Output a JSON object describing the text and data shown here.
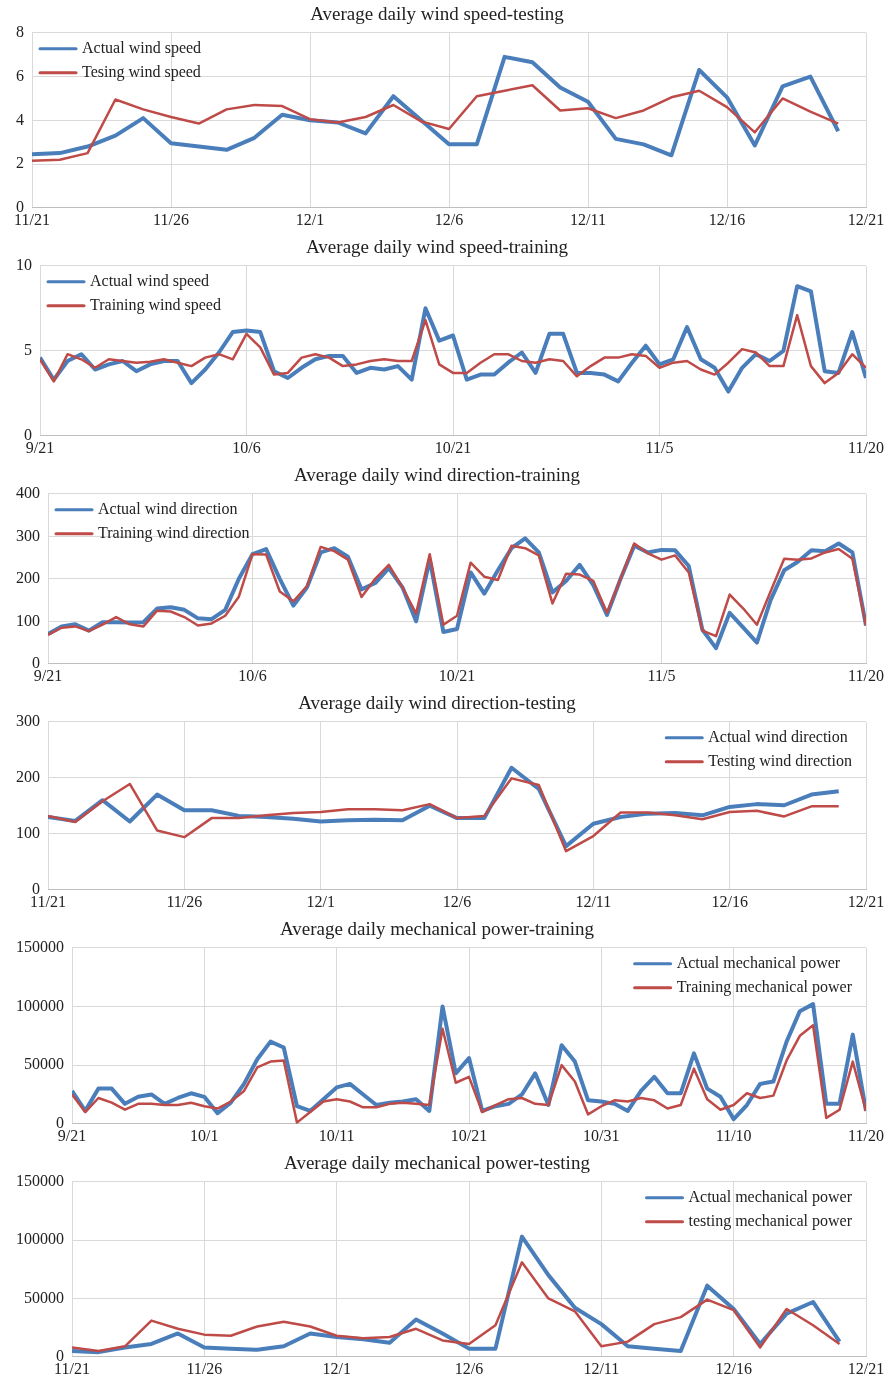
{
  "chart_data": [
    {
      "type": "line",
      "title": "Average daily wind speed-testing",
      "legend": "top left",
      "grid": true,
      "x": [
        "--11-21",
        "--11-22",
        "--11-23",
        "--11-24",
        "--11-25",
        "--11-26",
        "--11-27",
        "--11-28",
        "--11-29",
        "--11-30",
        "--12-01",
        "--12-02",
        "--12-03",
        "--12-04",
        "--12-05",
        "--12-06",
        "--12-07",
        "--12-08",
        "--12-09",
        "--12-10",
        "--12-11",
        "--12-12",
        "--12-13",
        "--12-14",
        "--12-15",
        "--12-16",
        "--12-17",
        "--12-18",
        "--12-19",
        "--12-20"
      ],
      "xlim": [
        "--11-21",
        "--12-21"
      ],
      "xticks": [
        {
          "value": "--11-21",
          "label": "11/21"
        },
        {
          "value": "--11-26",
          "label": "11/26"
        },
        {
          "value": "--12-01",
          "label": "12/1"
        },
        {
          "value": "--12-06",
          "label": "12/6"
        },
        {
          "value": "--12-11",
          "label": "12/11"
        },
        {
          "value": "--12-16",
          "label": "12/16"
        },
        {
          "value": "--12-21",
          "label": "12/21"
        }
      ],
      "ylim": [
        0,
        8
      ],
      "yticks": [
        0,
        2,
        4,
        6,
        8
      ],
      "series": [
        {
          "name": "Actual wind speed",
          "color": "#4a7ebb",
          "values": [
            2.45,
            2.5,
            2.8,
            3.3,
            4.1,
            2.95,
            2.8,
            2.65,
            3.2,
            4.25,
            4.0,
            3.9,
            3.4,
            5.1,
            4.0,
            2.9,
            2.9,
            6.9,
            6.65,
            5.5,
            4.85,
            3.15,
            2.9,
            2.4,
            6.3,
            5.05,
            2.85,
            5.55,
            6.0,
            3.5
          ]
        },
        {
          "name": "Tesing wind speed",
          "color": "#be4b48",
          "values": [
            2.15,
            2.2,
            2.5,
            4.95,
            4.5,
            4.15,
            3.85,
            4.5,
            4.7,
            4.65,
            4.05,
            3.9,
            4.15,
            4.7,
            3.95,
            3.6,
            5.1,
            5.35,
            5.6,
            4.45,
            4.55,
            4.1,
            4.45,
            5.05,
            5.35,
            4.6,
            3.45,
            5.0,
            4.4,
            3.85
          ]
        }
      ]
    },
    {
      "type": "line",
      "title": "Average daily wind speed-training",
      "legend": "top left",
      "grid": true,
      "x": [
        "--09-21",
        "--09-22",
        "--09-23",
        "--09-24",
        "--09-25",
        "--09-26",
        "--09-27",
        "--09-28",
        "--09-29",
        "--09-30",
        "--10-01",
        "--10-02",
        "--10-03",
        "--10-04",
        "--10-05",
        "--10-06",
        "--10-07",
        "--10-08",
        "--10-09",
        "--10-10",
        "--10-11",
        "--10-12",
        "--10-13",
        "--10-14",
        "--10-15",
        "--10-16",
        "--10-17",
        "--10-18",
        "--10-19",
        "--10-20",
        "--10-21",
        "--10-22",
        "--10-23",
        "--10-24",
        "--10-25",
        "--10-26",
        "--10-27",
        "--10-28",
        "--10-29",
        "--10-30",
        "--10-31",
        "--11-01",
        "--11-02",
        "--11-03",
        "--11-04",
        "--11-05",
        "--11-06",
        "--11-07",
        "--11-08",
        "--11-09",
        "--11-10",
        "--11-11",
        "--11-12",
        "--11-13",
        "--11-14",
        "--11-15",
        "--11-16",
        "--11-17",
        "--11-18",
        "--11-19",
        "--11-20"
      ],
      "xlim": [
        "--09-21",
        "--11-20"
      ],
      "xticks": [
        {
          "value": "--09-21",
          "label": "9/21"
        },
        {
          "value": "--10-06",
          "label": "10/6"
        },
        {
          "value": "--10-21",
          "label": "10/21"
        },
        {
          "value": "--11-05",
          "label": "11/5"
        },
        {
          "value": "--11-20",
          "label": "11/20"
        }
      ],
      "ylim": [
        0,
        10
      ],
      "yticks": [
        0,
        5,
        10
      ],
      "series": [
        {
          "name": "Actual wind speed",
          "color": "#4a7ebb",
          "values": [
            4.6,
            3.3,
            4.4,
            4.8,
            3.9,
            4.2,
            4.4,
            3.8,
            4.2,
            4.4,
            4.4,
            3.1,
            3.9,
            4.9,
            6.1,
            6.2,
            6.1,
            3.8,
            3.4,
            4.0,
            4.5,
            4.7,
            4.7,
            3.7,
            4.0,
            3.9,
            4.1,
            3.3,
            7.5,
            5.6,
            5.9,
            3.3,
            3.6,
            3.6,
            4.3,
            4.9,
            3.7,
            6.0,
            6.0,
            3.7,
            3.7,
            3.6,
            3.2,
            4.3,
            5.3,
            4.2,
            4.5,
            6.4,
            4.5,
            4.0,
            2.6,
            4.0,
            4.8,
            4.4,
            5.0,
            8.8,
            8.5,
            3.8,
            3.7,
            6.1,
            3.4
          ]
        },
        {
          "name": "Training wind speed",
          "color": "#be4b48",
          "values": [
            4.5,
            3.2,
            4.8,
            4.5,
            4.0,
            4.5,
            4.4,
            4.3,
            4.35,
            4.5,
            4.3,
            4.1,
            4.6,
            4.8,
            4.5,
            6.0,
            5.2,
            3.6,
            3.7,
            4.6,
            4.8,
            4.6,
            4.1,
            4.2,
            4.4,
            4.5,
            4.4,
            4.4,
            6.8,
            4.2,
            3.7,
            3.7,
            4.3,
            4.8,
            4.8,
            4.4,
            4.3,
            4.5,
            4.4,
            3.5,
            4.1,
            4.6,
            4.6,
            4.8,
            4.7,
            4.0,
            4.3,
            4.4,
            3.9,
            3.6,
            4.3,
            5.1,
            4.9,
            4.1,
            4.1,
            7.1,
            4.1,
            3.1,
            3.7,
            4.8,
            4.0
          ]
        }
      ]
    },
    {
      "type": "line",
      "title": "Average daily wind direction-training",
      "legend": "top left",
      "grid": true,
      "x": [
        "--09-21",
        "--09-22",
        "--09-23",
        "--09-24",
        "--09-25",
        "--09-26",
        "--09-27",
        "--09-28",
        "--09-29",
        "--09-30",
        "--10-01",
        "--10-02",
        "--10-03",
        "--10-04",
        "--10-05",
        "--10-06",
        "--10-07",
        "--10-08",
        "--10-09",
        "--10-10",
        "--10-11",
        "--10-12",
        "--10-13",
        "--10-14",
        "--10-15",
        "--10-16",
        "--10-17",
        "--10-18",
        "--10-19",
        "--10-20",
        "--10-21",
        "--10-22",
        "--10-23",
        "--10-24",
        "--10-25",
        "--10-26",
        "--10-27",
        "--10-28",
        "--10-29",
        "--10-30",
        "--10-31",
        "--11-01",
        "--11-02",
        "--11-03",
        "--11-04",
        "--11-05",
        "--11-06",
        "--11-07",
        "--11-08",
        "--11-09",
        "--11-10",
        "--11-11",
        "--11-12",
        "--11-13",
        "--11-14",
        "--11-15",
        "--11-16",
        "--11-17",
        "--11-18",
        "--11-19",
        "--11-20"
      ],
      "xlim": [
        "--09-21",
        "--11-20"
      ],
      "xticks": [
        {
          "value": "--09-21",
          "label": "9/21"
        },
        {
          "value": "--10-06",
          "label": "10/6"
        },
        {
          "value": "--10-21",
          "label": "10/21"
        },
        {
          "value": "--11-05",
          "label": "11/5"
        },
        {
          "value": "--11-20",
          "label": "11/20"
        }
      ],
      "ylim": [
        0,
        400
      ],
      "yticks": [
        0,
        100,
        200,
        300,
        400
      ],
      "series": [
        {
          "name": "Actual wind direction",
          "color": "#4a7ebb",
          "values": [
            70,
            88,
            93,
            78,
            98,
            98,
            97,
            98,
            130,
            133,
            127,
            107,
            105,
            127,
            200,
            258,
            270,
            200,
            137,
            180,
            262,
            272,
            252,
            175,
            190,
            225,
            180,
            100,
            245,
            75,
            82,
            215,
            165,
            220,
            272,
            295,
            262,
            168,
            195,
            233,
            185,
            115,
            200,
            278,
            262,
            268,
            267,
            230,
            80,
            37,
            120,
            85,
            50,
            150,
            220,
            240,
            267,
            265,
            283,
            262,
            90
          ]
        },
        {
          "name": "Training wind direction",
          "color": "#be4b48",
          "values": [
            68,
            85,
            88,
            77,
            92,
            110,
            93,
            88,
            125,
            123,
            110,
            90,
            95,
            113,
            158,
            258,
            257,
            170,
            147,
            183,
            275,
            265,
            245,
            157,
            200,
            233,
            180,
            118,
            258,
            92,
            113,
            238,
            205,
            197,
            278,
            272,
            255,
            142,
            212,
            210,
            195,
            120,
            200,
            283,
            260,
            245,
            255,
            215,
            78,
            65,
            163,
            130,
            92,
            170,
            247,
            245,
            248,
            262,
            270,
            247,
            90
          ]
        }
      ]
    },
    {
      "type": "line",
      "title": "Average daily wind direction-testing",
      "legend": "top right",
      "grid": true,
      "x": [
        "--11-21",
        "--11-22",
        "--11-23",
        "--11-24",
        "--11-25",
        "--11-26",
        "--11-27",
        "--11-28",
        "--11-29",
        "--11-30",
        "--12-01",
        "--12-02",
        "--12-03",
        "--12-04",
        "--12-05",
        "--12-06",
        "--12-07",
        "--12-08",
        "--12-09",
        "--12-10",
        "--12-11",
        "--12-12",
        "--12-13",
        "--12-14",
        "--12-15",
        "--12-16",
        "--12-17",
        "--12-18",
        "--12-19",
        "--12-20"
      ],
      "xlim": [
        "--11-21",
        "--12-21"
      ],
      "xticks": [
        {
          "value": "--11-21",
          "label": "11/21"
        },
        {
          "value": "--11-26",
          "label": "11/26"
        },
        {
          "value": "--12-01",
          "label": "12/1"
        },
        {
          "value": "--12-06",
          "label": "12/6"
        },
        {
          "value": "--12-11",
          "label": "12/11"
        },
        {
          "value": "--12-16",
          "label": "12/16"
        },
        {
          "value": "--12-21",
          "label": "12/21"
        }
      ],
      "ylim": [
        0,
        300
      ],
      "yticks": [
        0,
        100,
        200,
        300
      ],
      "series": [
        {
          "name": "Actual wind direction",
          "color": "#4a7ebb",
          "values": [
            130,
            123,
            160,
            122,
            170,
            142,
            142,
            132,
            130,
            127,
            122,
            124,
            125,
            124,
            150,
            128,
            128,
            218,
            180,
            78,
            118,
            130,
            136,
            137,
            133,
            148,
            153,
            151,
            170,
            176
          ]
        },
        {
          "name": "Testing wind direction",
          "color": "#be4b48",
          "values": [
            132,
            121,
            158,
            189,
            106,
            94,
            128,
            128,
            133,
            137,
            139,
            144,
            144,
            142,
            153,
            128,
            132,
            199,
            187,
            69,
            96,
            138,
            138,
            133,
            126,
            139,
            141,
            131,
            149,
            149
          ]
        }
      ]
    },
    {
      "type": "line",
      "title": "Average daily mechanical power-training",
      "legend": "top right",
      "grid": true,
      "x": [
        "--09-21",
        "--09-22",
        "--09-23",
        "--09-24",
        "--09-25",
        "--09-26",
        "--09-27",
        "--09-28",
        "--09-29",
        "--09-30",
        "--10-01",
        "--10-02",
        "--10-03",
        "--10-04",
        "--10-05",
        "--10-06",
        "--10-07",
        "--10-08",
        "--10-09",
        "--10-10",
        "--10-11",
        "--10-12",
        "--10-13",
        "--10-14",
        "--10-15",
        "--10-16",
        "--10-17",
        "--10-18",
        "--10-19",
        "--10-20",
        "--10-21",
        "--10-22",
        "--10-23",
        "--10-24",
        "--10-25",
        "--10-26",
        "--10-27",
        "--10-28",
        "--10-29",
        "--10-30",
        "--10-31",
        "--11-01",
        "--11-02",
        "--11-03",
        "--11-04",
        "--11-05",
        "--11-06",
        "--11-07",
        "--11-08",
        "--11-09",
        "--11-10",
        "--11-11",
        "--11-12",
        "--11-13",
        "--11-14",
        "--11-15",
        "--11-16",
        "--11-17",
        "--11-18",
        "--11-19",
        "--11-20"
      ],
      "xlim": [
        "--09-21",
        "--11-20"
      ],
      "xticks": [
        {
          "value": "--09-21",
          "label": "9/21"
        },
        {
          "value": "--10-01",
          "label": "10/1"
        },
        {
          "value": "--10-11",
          "label": "10/11"
        },
        {
          "value": "--10-21",
          "label": "10/21"
        },
        {
          "value": "--10-31",
          "label": "10/31"
        },
        {
          "value": "--11-10",
          "label": "11/10"
        },
        {
          "value": "--11-20",
          "label": "11/20"
        }
      ],
      "ylim": [
        0,
        150000
      ],
      "yticks": [
        0,
        50000,
        100000,
        150000
      ],
      "series": [
        {
          "name": "Actual mechanical power",
          "color": "#4a7ebb",
          "values": [
            28000,
            11000,
            30000,
            30000,
            17000,
            23000,
            25000,
            17000,
            22000,
            26000,
            23000,
            9000,
            18000,
            34000,
            55000,
            70000,
            65000,
            15000,
            11000,
            21000,
            31000,
            34000,
            25000,
            16000,
            18000,
            19000,
            21000,
            11000,
            100000,
            43000,
            56000,
            11000,
            15000,
            17000,
            25000,
            43000,
            16000,
            67000,
            53000,
            20000,
            19000,
            17000,
            11000,
            28000,
            40000,
            26000,
            26000,
            60000,
            30000,
            23000,
            4000,
            16000,
            34000,
            36000,
            70000,
            96000,
            102000,
            17000,
            17000,
            76000,
            11000
          ]
        },
        {
          "name": "Training mechanical power",
          "color": "#be4b48",
          "values": [
            25000,
            10000,
            22000,
            18000,
            12000,
            17000,
            17000,
            16000,
            16000,
            18000,
            15000,
            13000,
            19000,
            28000,
            48000,
            53000,
            54000,
            1000,
            10000,
            19000,
            21000,
            19000,
            14000,
            14000,
            17000,
            18000,
            17000,
            16000,
            81000,
            35000,
            40000,
            10000,
            16000,
            21000,
            22000,
            17000,
            16000,
            50000,
            36000,
            8000,
            15000,
            20000,
            19000,
            22000,
            20000,
            13000,
            16000,
            47000,
            21000,
            12000,
            16000,
            26000,
            22000,
            24000,
            54000,
            75000,
            84000,
            5000,
            12000,
            53000,
            11000
          ]
        }
      ]
    },
    {
      "type": "line",
      "title": "Average daily mechanical power-testing",
      "legend": "top right",
      "grid": true,
      "x": [
        "--11-21",
        "--11-22",
        "--11-23",
        "--11-24",
        "--11-25",
        "--11-26",
        "--11-27",
        "--11-28",
        "--11-29",
        "--11-30",
        "--12-01",
        "--12-02",
        "--12-03",
        "--12-04",
        "--12-05",
        "--12-06",
        "--12-07",
        "--12-08",
        "--12-09",
        "--12-10",
        "--12-11",
        "--12-12",
        "--12-13",
        "--12-14",
        "--12-15",
        "--12-16",
        "--12-17",
        "--12-18",
        "--12-19",
        "--12-20"
      ],
      "xlim": [
        "--11-21",
        "--12-21"
      ],
      "xticks": [
        {
          "value": "--11-21",
          "label": "11/21"
        },
        {
          "value": "--11-26",
          "label": "11/26"
        },
        {
          "value": "--12-01",
          "label": "12/1"
        },
        {
          "value": "--12-06",
          "label": "12/6"
        },
        {
          "value": "--12-11",
          "label": "12/11"
        },
        {
          "value": "--12-16",
          "label": "12/16"
        },
        {
          "value": "--12-21",
          "label": "12/21"
        }
      ],
      "ylim": [
        0,
        150000
      ],
      "yticks": [
        0,
        50000,
        100000,
        150000
      ],
      "series": [
        {
          "name": "Actual mechanical power",
          "color": "#4a7ebb",
          "values": [
            5000,
            4000,
            8000,
            11000,
            20000,
            8000,
            7000,
            6000,
            9000,
            20000,
            17000,
            15000,
            12000,
            32000,
            20000,
            7000,
            7000,
            103000,
            70000,
            42000,
            28000,
            9000,
            7000,
            5000,
            61000,
            41000,
            11000,
            37000,
            47000,
            13000
          ]
        },
        {
          "name": "testing mechanical power",
          "color": "#be4b48",
          "values": [
            8000,
            5000,
            9000,
            31000,
            24000,
            19000,
            18000,
            26000,
            30000,
            26000,
            18000,
            16000,
            17000,
            24000,
            14000,
            11000,
            27000,
            81000,
            50000,
            39000,
            9000,
            13000,
            28000,
            34000,
            49000,
            40000,
            8000,
            41000,
            27000,
            11000
          ]
        }
      ]
    }
  ]
}
